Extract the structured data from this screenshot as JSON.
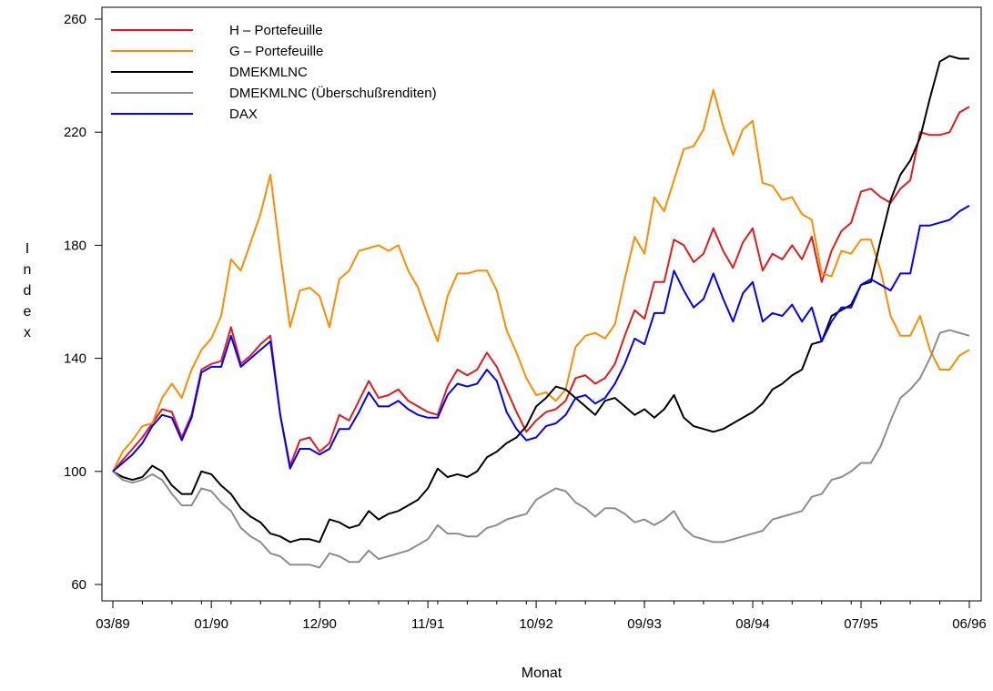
{
  "chart_data": {
    "type": "line",
    "xlabel": "Monat",
    "ylabel": "Index",
    "ylim": [
      60,
      260
    ],
    "yticks": [
      60,
      100,
      140,
      180,
      220,
      260
    ],
    "xticks": [
      {
        "i": 0,
        "label": "03/89"
      },
      {
        "i": 10,
        "label": "01/90"
      },
      {
        "i": 21,
        "label": "12/90"
      },
      {
        "i": 32,
        "label": "11/91"
      },
      {
        "i": 43,
        "label": "10/92"
      },
      {
        "i": 54,
        "label": "09/93"
      },
      {
        "i": 65,
        "label": "08/94"
      },
      {
        "i": 76,
        "label": "07/95"
      },
      {
        "i": 87,
        "label": "06/96"
      }
    ],
    "legend_position": "top-left",
    "series": [
      {
        "name": "H – Portefeuille",
        "color": "#e41a1c",
        "values": [
          100,
          104,
          108,
          112,
          117,
          122,
          121,
          112,
          120,
          136,
          138,
          139,
          151,
          138,
          141,
          145,
          148,
          120,
          102,
          111,
          112,
          107,
          110,
          120,
          118,
          125,
          132,
          126,
          127,
          129,
          125,
          123,
          121,
          120,
          130,
          136,
          134,
          136,
          142,
          137,
          129,
          121,
          114,
          118,
          121,
          122,
          125,
          133,
          134,
          131,
          133,
          138,
          148,
          157,
          154,
          167,
          167,
          182,
          180,
          174,
          177,
          186,
          178,
          172,
          181,
          186,
          171,
          177,
          175,
          180,
          175,
          183,
          167,
          178,
          185,
          188,
          199,
          200,
          197,
          195,
          200,
          203,
          220,
          219,
          219,
          220,
          227,
          229
        ]
      },
      {
        "name": "G – Portefeuille",
        "color": "#ff8c00",
        "values": [
          100,
          107,
          111,
          116,
          117,
          126,
          131,
          126,
          136,
          143,
          147,
          155,
          175,
          171,
          181,
          191,
          205,
          177,
          151,
          164,
          165,
          162,
          151,
          168,
          171,
          178,
          179,
          180,
          178,
          180,
          171,
          165,
          155,
          146,
          162,
          170,
          170,
          171,
          171,
          164,
          150,
          142,
          133,
          127,
          128,
          125,
          129,
          144,
          148,
          149,
          147,
          152,
          168,
          183,
          177,
          197,
          192,
          203,
          214,
          215,
          221,
          235,
          222,
          212,
          221,
          224,
          202,
          201,
          196,
          197,
          191,
          189,
          170,
          169,
          178,
          177,
          182,
          182,
          171,
          155,
          148,
          148,
          155,
          143,
          136,
          136,
          141,
          143
        ]
      },
      {
        "name": "DMEKMLNC",
        "color": "#000000",
        "values": [
          100,
          98,
          97,
          98,
          102,
          100,
          95,
          92,
          92,
          100,
          99,
          95,
          92,
          87,
          84,
          82,
          78,
          77,
          75,
          76,
          76,
          75,
          83,
          82,
          80,
          81,
          86,
          83,
          85,
          86,
          88,
          90,
          94,
          101,
          98,
          99,
          98,
          100,
          105,
          107,
          110,
          112,
          116,
          123,
          126,
          130,
          129,
          126,
          123,
          120,
          125,
          126,
          123,
          120,
          122,
          119,
          122,
          127,
          119,
          116,
          115,
          114,
          115,
          117,
          119,
          121,
          124,
          129,
          131,
          134,
          136,
          145,
          146,
          155,
          157,
          159,
          166,
          167,
          182,
          196,
          205,
          210,
          218,
          232,
          245,
          247,
          246,
          246
        ]
      },
      {
        "name": "DMEKMLNC  (Überschußrenditen)",
        "color": "#8c8c8c",
        "values": [
          100,
          97,
          96,
          97,
          99,
          97,
          92,
          88,
          88,
          94,
          93,
          89,
          86,
          80,
          77,
          75,
          71,
          70,
          67,
          67,
          67,
          66,
          71,
          70,
          68,
          68,
          72,
          69,
          70,
          71,
          72,
          74,
          76,
          81,
          78,
          78,
          77,
          77,
          80,
          81,
          83,
          84,
          85,
          90,
          92,
          94,
          93,
          89,
          87,
          84,
          87,
          87,
          85,
          82,
          83,
          81,
          83,
          86,
          80,
          77,
          76,
          75,
          75,
          76,
          77,
          78,
          79,
          83,
          84,
          85,
          86,
          91,
          92,
          97,
          98,
          100,
          103,
          103,
          109,
          118,
          126,
          129,
          133,
          140,
          149,
          150,
          149,
          148
        ]
      },
      {
        "name": "DAX",
        "color": "#0000ff",
        "values": [
          100,
          103,
          106,
          110,
          116,
          120,
          119,
          111,
          119,
          135,
          137,
          137,
          148,
          137,
          140,
          143,
          146,
          120,
          101,
          108,
          108,
          106,
          108,
          115,
          115,
          121,
          128,
          123,
          123,
          125,
          122,
          120,
          119,
          119,
          127,
          131,
          130,
          131,
          136,
          132,
          121,
          115,
          111,
          112,
          116,
          117,
          120,
          126,
          127,
          124,
          126,
          131,
          138,
          147,
          145,
          156,
          156,
          171,
          164,
          158,
          161,
          170,
          161,
          153,
          163,
          167,
          153,
          156,
          155,
          159,
          153,
          158,
          146,
          153,
          158,
          158,
          166,
          168,
          166,
          164,
          170,
          170,
          187,
          187,
          188,
          189,
          192,
          194
        ]
      }
    ]
  }
}
